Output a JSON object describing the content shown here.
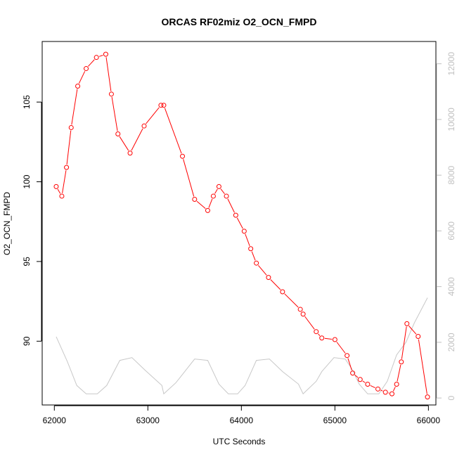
{
  "chart_data": {
    "type": "line",
    "title": "ORCAS RF02miz O2_OCN_FMPD",
    "xlabel": "UTC Seconds",
    "ylabel": "O2_OCN_FMPD",
    "xlim": [
      61870,
      66080
    ],
    "ylim": [
      86.0,
      108.8
    ],
    "y2lim": [
      -250,
      12800
    ],
    "xticks": [
      62000,
      63000,
      64000,
      65000,
      66000
    ],
    "yticks": [
      90,
      95,
      100,
      105
    ],
    "y2ticks": [
      0,
      2000,
      4000,
      6000,
      8000,
      10000,
      12000
    ],
    "grid": false,
    "series": [
      {
        "axis": "left",
        "color": "#ff0000",
        "marker": "open-circle",
        "x": [
          62020,
          62080,
          62130,
          62180,
          62250,
          62340,
          62450,
          62550,
          62610,
          62680,
          62810,
          62960,
          63140,
          63170,
          63370,
          63500,
          63640,
          63700,
          63760,
          63840,
          63940,
          64030,
          64100,
          64160,
          64290,
          64440,
          64630,
          64660,
          64800,
          64860,
          65000,
          65130,
          65190,
          65270,
          65350,
          65460,
          65540,
          65610,
          65660,
          65710,
          65770,
          65890,
          65990
        ],
        "values": [
          99.7,
          99.1,
          100.9,
          103.4,
          106.0,
          107.1,
          107.8,
          108.0,
          105.5,
          103.0,
          101.8,
          103.5,
          104.8,
          104.8,
          101.6,
          98.9,
          98.2,
          99.1,
          99.7,
          99.1,
          97.9,
          96.9,
          95.8,
          94.9,
          94.0,
          93.1,
          92.0,
          91.7,
          90.6,
          90.2,
          90.1,
          89.1,
          88.0,
          87.6,
          87.3,
          87.0,
          86.8,
          86.7,
          87.3,
          88.7,
          91.1,
          90.3,
          86.5
        ]
      },
      {
        "axis": "right",
        "color": "#c8c8c8",
        "marker": "none",
        "x": [
          62020,
          62140,
          62240,
          62340,
          62460,
          62560,
          62700,
          62830,
          62970,
          63150,
          63170,
          63300,
          63500,
          63640,
          63760,
          63860,
          63960,
          64040,
          64160,
          64300,
          64440,
          64610,
          64660,
          64800,
          64860,
          64990,
          65110,
          65180,
          65260,
          65350,
          65470,
          65560,
          65660,
          65760,
          65850,
          65990
        ],
        "values": [
          2200,
          1300,
          450,
          150,
          150,
          450,
          1350,
          1450,
          1000,
          450,
          150,
          550,
          1400,
          1350,
          500,
          150,
          150,
          450,
          1350,
          1400,
          950,
          500,
          150,
          600,
          950,
          1450,
          1400,
          1050,
          500,
          150,
          150,
          600,
          1550,
          2000,
          2700,
          3600
        ]
      }
    ]
  }
}
